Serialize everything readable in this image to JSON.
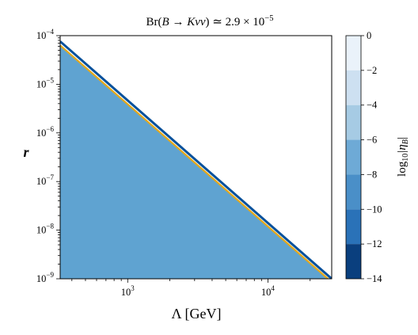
{
  "chart_data": {
    "type": "contour",
    "title_parts": {
      "prefix": "Br(",
      "B": "B",
      "arrow": " → ",
      "process": "Kνν",
      "close": ")",
      "approx": " ≃ 2.9 × 10",
      "exp": "−5"
    },
    "xlabel": "Λ [GeV]",
    "ylabel": "r",
    "xscale": "log",
    "yscale": "log",
    "xlim": [
      330,
      28500
    ],
    "ylim": [
      1e-09,
      0.0001
    ],
    "x_ticks": [
      {
        "value": 1000,
        "base": "10",
        "exp": "3"
      },
      {
        "value": 10000,
        "base": "10",
        "exp": "4"
      }
    ],
    "y_ticks": [
      {
        "value": 0.0001,
        "base": "10",
        "exp": "−4"
      },
      {
        "value": 1e-05,
        "base": "10",
        "exp": "−5"
      },
      {
        "value": 1e-06,
        "base": "10",
        "exp": "−6"
      },
      {
        "value": 1e-07,
        "base": "10",
        "exp": "−7"
      },
      {
        "value": 1e-08,
        "base": "10",
        "exp": "−8"
      },
      {
        "value": 1e-09,
        "base": "10",
        "exp": "−9"
      }
    ],
    "boundary_line": {
      "points": [
        [
          330,
          7.6e-05
        ],
        [
          28500,
          1e-09
        ]
      ],
      "color": "#08519c"
    },
    "highlight_line": {
      "points": [
        [
          330,
          6.3e-05
        ],
        [
          26800,
          1e-09
        ]
      ],
      "color": "#e6a91a"
    },
    "contour_bands": [
      {
        "offset_decades": 0.62,
        "color": "#eaf2fa"
      },
      {
        "offset_decades": 0.33,
        "color": "#d6e6f4"
      },
      {
        "offset_decades": 0.2,
        "color": "#b7d5ea"
      },
      {
        "offset_decades": 0.12,
        "color": "#8fc0e0"
      },
      {
        "offset_decades": 0.06,
        "color": "#5fa3d1"
      }
    ],
    "colorbar": {
      "label_prefix": "log",
      "label_sub": "10",
      "label_body": "|η",
      "label_body_sub": "B",
      "label_end": "|",
      "range": [
        -14,
        0
      ],
      "ticks": [
        "0",
        "−2",
        "−4",
        "−6",
        "−8",
        "−10",
        "−12",
        "−14"
      ],
      "levels": [
        {
          "from": 0,
          "to": -2,
          "color": "#eaf2fa"
        },
        {
          "from": -2,
          "to": -4,
          "color": "#cde0f1"
        },
        {
          "from": -4,
          "to": -6,
          "color": "#a6cbe4"
        },
        {
          "from": -6,
          "to": -8,
          "color": "#6eaad6"
        },
        {
          "from": -8,
          "to": -10,
          "color": "#4a8fc8"
        },
        {
          "from": -10,
          "to": -12,
          "color": "#2a72b8"
        },
        {
          "from": -12,
          "to": -14,
          "color": "#0a3f7e"
        }
      ]
    }
  }
}
